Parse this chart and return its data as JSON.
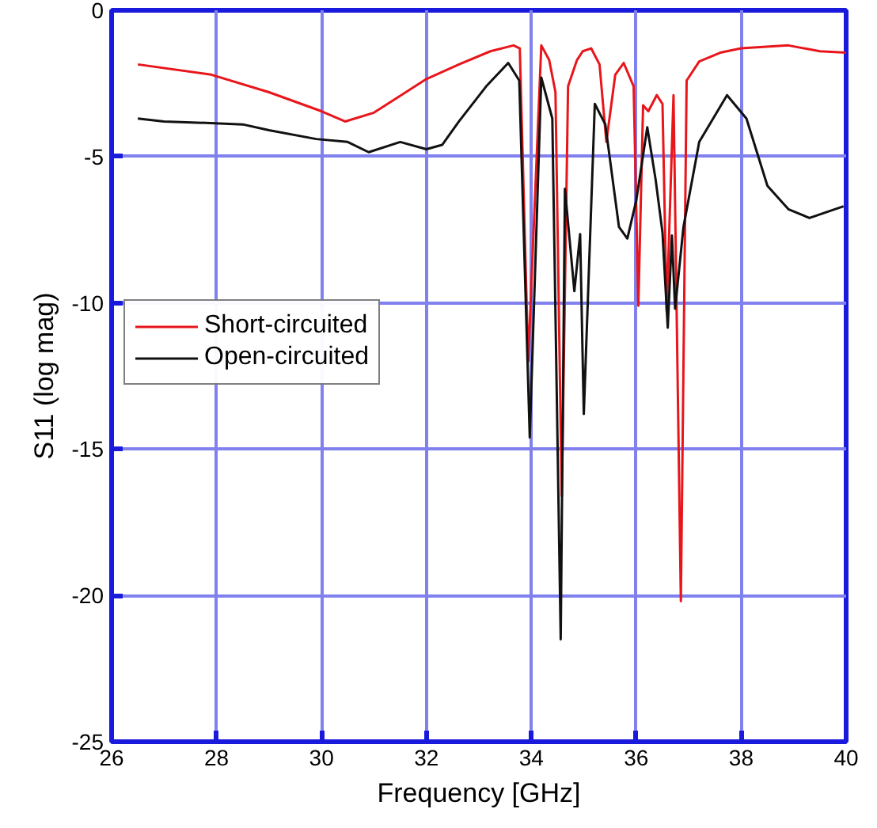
{
  "chart_data": {
    "type": "line",
    "xlabel": "Frequency [GHz]",
    "ylabel": "S11 (log mag)",
    "xlim": [
      26,
      40
    ],
    "ylim": [
      -25,
      0
    ],
    "xticks": [
      26,
      28,
      30,
      32,
      34,
      36,
      38,
      40
    ],
    "yticks": [
      -25,
      -20,
      -15,
      -10,
      -5,
      0
    ],
    "grid": true,
    "legend": "left",
    "series": [
      {
        "name": "Short-circuited",
        "color": "#e8161b",
        "x": [
          26.5,
          27.9,
          29.0,
          30.0,
          30.45,
          31.0,
          32.0,
          32.62,
          33.22,
          33.66,
          33.78,
          33.94,
          34.19,
          34.34,
          34.46,
          34.58,
          34.7,
          34.87,
          34.98,
          35.14,
          35.3,
          35.43,
          35.6,
          35.76,
          35.95,
          36.04,
          36.13,
          36.23,
          36.39,
          36.5,
          36.58,
          36.71,
          36.85,
          36.96,
          37.2,
          37.6,
          38.0,
          38.9,
          39.5,
          40.0
        ],
        "values": [
          -1.85,
          -2.2,
          -2.8,
          -3.45,
          -3.8,
          -3.5,
          -2.35,
          -1.85,
          -1.4,
          -1.2,
          -1.3,
          -12,
          -1.2,
          -1.7,
          -2.8,
          -16.6,
          -2.6,
          -1.7,
          -1.4,
          -1.3,
          -1.85,
          -4.5,
          -2.2,
          -1.8,
          -2.6,
          -10.1,
          -3.25,
          -3.45,
          -2.9,
          -3.2,
          -10.3,
          -2.9,
          -20.2,
          -2.4,
          -1.75,
          -1.45,
          -1.3,
          -1.2,
          -1.4,
          -1.45
        ]
      },
      {
        "name": "Open-circuited",
        "color": "#111111",
        "x": [
          26.5,
          27.0,
          27.8,
          28.5,
          29.0,
          29.9,
          30.5,
          30.9,
          31.5,
          32.0,
          32.3,
          32.62,
          33.14,
          33.56,
          33.77,
          33.97,
          34.19,
          34.4,
          34.56,
          34.64,
          34.82,
          34.93,
          35.0,
          35.21,
          35.41,
          35.67,
          35.83,
          36.0,
          36.21,
          36.37,
          36.5,
          36.6,
          36.68,
          36.74,
          36.9,
          37.2,
          37.73,
          38.1,
          38.5,
          38.9,
          39.3,
          39.95
        ],
        "values": [
          -3.7,
          -3.8,
          -3.85,
          -3.9,
          -4.1,
          -4.4,
          -4.5,
          -4.85,
          -4.5,
          -4.75,
          -4.6,
          -3.8,
          -2.6,
          -1.8,
          -2.4,
          -14.6,
          -2.3,
          -3.7,
          -21.5,
          -6.1,
          -9.6,
          -7.65,
          -13.8,
          -3.2,
          -3.9,
          -7.4,
          -7.8,
          -6.5,
          -4.0,
          -5.8,
          -7.6,
          -10.85,
          -7.7,
          -10.2,
          -7.4,
          -4.5,
          -2.9,
          -3.7,
          -6.0,
          -6.8,
          -7.1,
          -6.7
        ]
      }
    ]
  }
}
